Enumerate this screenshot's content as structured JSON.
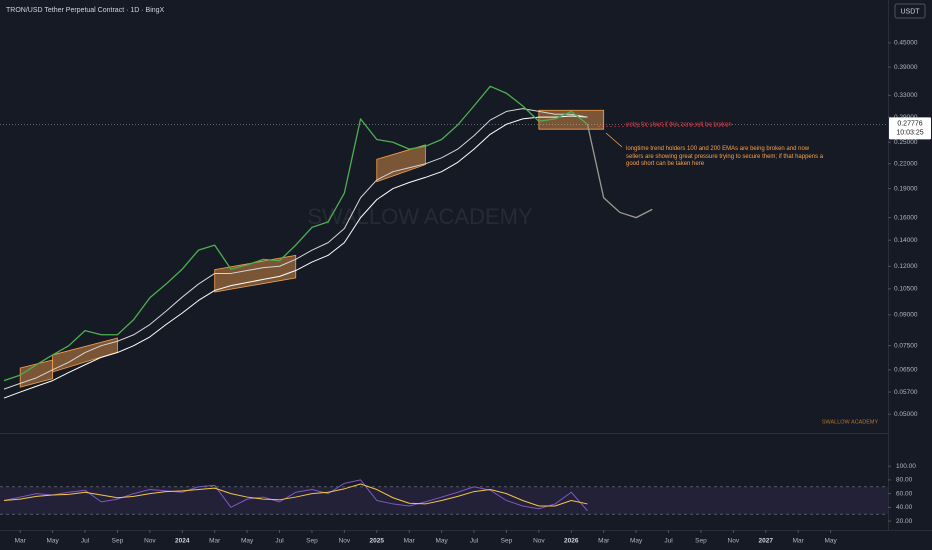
{
  "header": {
    "title": "TRON/USD Tether Perpetual Contract · 1D · BingX",
    "currency": "USDT"
  },
  "chart_data": [
    {
      "type": "line",
      "log_scale": true,
      "xlim": [
        "2023-02",
        "2027-07"
      ],
      "ylim": [
        0.045,
        0.58
      ],
      "yticks": [
        {
          "value": 0.45,
          "label": "0.45000"
        },
        {
          "value": 0.39,
          "label": "0.39000"
        },
        {
          "value": 0.33,
          "label": "0.33000"
        },
        {
          "value": 0.29,
          "label": "0.29000"
        },
        {
          "value": 0.25,
          "label": "0.25000"
        },
        {
          "value": 0.22,
          "label": "0.22000"
        },
        {
          "value": 0.19,
          "label": "0.19000"
        },
        {
          "value": 0.16,
          "label": "0.16000"
        },
        {
          "value": 0.14,
          "label": "0.14000"
        },
        {
          "value": 0.12,
          "label": "0.12000"
        },
        {
          "value": 0.105,
          "label": "0.10500"
        },
        {
          "value": 0.09,
          "label": "0.09000"
        },
        {
          "value": 0.075,
          "label": "0.07500"
        },
        {
          "value": 0.065,
          "label": "0.06500"
        },
        {
          "value": 0.057,
          "label": "0.05700"
        },
        {
          "value": 0.05,
          "label": "0.05000"
        }
      ],
      "xticks": [
        {
          "value": "2023-03",
          "label": "Mar"
        },
        {
          "value": "2023-05",
          "label": "May"
        },
        {
          "value": "2023-07",
          "label": "Jul"
        },
        {
          "value": "2023-09",
          "label": "Sep"
        },
        {
          "value": "2023-11",
          "label": "Nov"
        },
        {
          "value": "2024-01",
          "label": "2024"
        },
        {
          "value": "2024-03",
          "label": "Mar"
        },
        {
          "value": "2024-05",
          "label": "May"
        },
        {
          "value": "2024-07",
          "label": "Jul"
        },
        {
          "value": "2024-09",
          "label": "Sep"
        },
        {
          "value": "2024-11",
          "label": "Nov"
        },
        {
          "value": "2025-01",
          "label": "2025"
        },
        {
          "value": "2025-03",
          "label": "Mar"
        },
        {
          "value": "2025-05",
          "label": "May"
        },
        {
          "value": "2025-07",
          "label": "Jul"
        },
        {
          "value": "2025-09",
          "label": "Sep"
        },
        {
          "value": "2025-11",
          "label": "Nov"
        },
        {
          "value": "2026-01",
          "label": "2026"
        },
        {
          "value": "2026-03",
          "label": "Mar"
        },
        {
          "value": "2026-05",
          "label": "May"
        },
        {
          "value": "2026-07",
          "label": "Jul"
        },
        {
          "value": "2026-09",
          "label": "Sep"
        },
        {
          "value": "2026-11",
          "label": "Nov"
        },
        {
          "value": "2027-01",
          "label": "2027"
        },
        {
          "value": "2027-03",
          "label": "Mar"
        },
        {
          "value": "2027-05",
          "label": "May"
        }
      ],
      "series": [
        {
          "color": "#ffffff",
          "width": 1,
          "x": [
            "2023-02",
            "2023-03",
            "2023-04",
            "2023-05",
            "2023-06",
            "2023-07",
            "2023-08",
            "2023-09",
            "2023-10",
            "2023-11",
            "2023-12",
            "2024-01",
            "2024-02",
            "2024-03",
            "2024-04",
            "2024-05",
            "2024-06",
            "2024-07",
            "2024-08",
            "2024-09",
            "2024-10",
            "2024-11",
            "2024-12",
            "2025-01",
            "2025-02",
            "2025-03",
            "2025-04",
            "2025-05",
            "2025-06",
            "2025-07",
            "2025-08",
            "2025-09",
            "2025-10",
            "2025-11",
            "2025-12",
            "2026-01",
            "2026-02"
          ],
          "values": [
            0.055,
            0.057,
            0.059,
            0.061,
            0.064,
            0.067,
            0.07,
            0.072,
            0.075,
            0.079,
            0.085,
            0.091,
            0.098,
            0.104,
            0.107,
            0.109,
            0.111,
            0.113,
            0.117,
            0.123,
            0.128,
            0.138,
            0.16,
            0.178,
            0.19,
            0.197,
            0.203,
            0.21,
            0.222,
            0.24,
            0.262,
            0.278,
            0.287,
            0.29,
            0.29,
            0.292,
            0.29
          ]
        },
        {
          "color": "#d6d6d6",
          "width": 1,
          "x": [
            "2023-02",
            "2023-03",
            "2023-04",
            "2023-05",
            "2023-06",
            "2023-07",
            "2023-08",
            "2023-09",
            "2023-10",
            "2023-11",
            "2023-12",
            "2024-01",
            "2024-02",
            "2024-03",
            "2024-04",
            "2024-05",
            "2024-06",
            "2024-07",
            "2024-08",
            "2024-09",
            "2024-10",
            "2024-11",
            "2024-12",
            "2025-01",
            "2025-02",
            "2025-03",
            "2025-04",
            "2025-05",
            "2025-06",
            "2025-07",
            "2025-08",
            "2025-09",
            "2025-10",
            "2025-11",
            "2025-12",
            "2026-01",
            "2026-02"
          ],
          "values": [
            0.058,
            0.06,
            0.062,
            0.065,
            0.068,
            0.072,
            0.075,
            0.077,
            0.08,
            0.085,
            0.092,
            0.1,
            0.108,
            0.115,
            0.115,
            0.117,
            0.119,
            0.12,
            0.125,
            0.132,
            0.138,
            0.15,
            0.18,
            0.2,
            0.21,
            0.215,
            0.22,
            0.228,
            0.24,
            0.26,
            0.285,
            0.3,
            0.305,
            0.3,
            0.295,
            0.295,
            0.29
          ]
        },
        {
          "color": "#4caf50",
          "width": 1.3,
          "x": [
            "2023-02",
            "2023-03",
            "2023-04",
            "2023-05",
            "2023-06",
            "2023-07",
            "2023-08",
            "2023-09",
            "2023-10",
            "2023-11",
            "2023-12",
            "2024-01",
            "2024-02",
            "2024-03",
            "2024-04",
            "2024-05",
            "2024-06",
            "2024-07",
            "2024-08",
            "2024-09",
            "2024-10",
            "2024-11",
            "2024-12",
            "2025-01",
            "2025-02",
            "2025-03",
            "2025-04",
            "2025-05",
            "2025-06",
            "2025-07",
            "2025-08",
            "2025-09",
            "2025-10",
            "2025-11",
            "2025-12",
            "2026-01",
            "2026-02"
          ],
          "values": [
            0.061,
            0.063,
            0.067,
            0.071,
            0.075,
            0.082,
            0.08,
            0.08,
            0.0875,
            0.0996,
            0.108,
            0.118,
            0.132,
            0.136,
            0.118,
            0.121,
            0.125,
            0.124,
            0.136,
            0.151,
            0.156,
            0.185,
            0.287,
            0.254,
            0.25,
            0.24,
            0.244,
            0.254,
            0.277,
            0.31,
            0.348,
            0.334,
            0.31,
            0.283,
            0.287,
            0.3,
            0.278
          ]
        },
        {
          "color": "#9e9a8f",
          "width": 1.3,
          "x": [
            "2026-02",
            "2026-03",
            "2026-04",
            "2026-05",
            "2026-06"
          ],
          "values": [
            0.278,
            0.18,
            0.165,
            0.16,
            0.168
          ]
        }
      ],
      "zones": [
        {
          "x": [
            "2023-03",
            "2023-05"
          ],
          "low": [
            0.0587,
            0.0617
          ],
          "high": [
            0.0657,
            0.0689
          ]
        },
        {
          "x": [
            "2023-05",
            "2023-09"
          ],
          "low": [
            0.0642,
            0.0722
          ],
          "high": [
            0.071,
            0.0785
          ]
        },
        {
          "x": [
            "2024-03",
            "2024-08"
          ],
          "low": [
            0.103,
            0.112
          ],
          "high": [
            0.1176,
            0.128
          ]
        },
        {
          "x": [
            "2025-01",
            "2025-04"
          ],
          "low": [
            0.198,
            0.219
          ],
          "high": [
            0.226,
            0.246
          ]
        },
        {
          "x": [
            "2025-11",
            "2026-03"
          ],
          "low": [
            0.27,
            0.27
          ],
          "high": [
            0.302,
            0.302
          ]
        }
      ],
      "zone_color": "#f7a04b",
      "annotations": [
        {
          "text": "entry for short if this zone will be broken",
          "color": "#f23645"
        },
        {
          "text": "longtime trend holders 100 and 200 EMAs are being broken and now sellers are showing great pressure trying to secure them; if that happens a good short can be taken here",
          "color": "#f7a04b"
        }
      ],
      "watermark": "SWALLOW ACADEMY",
      "watermark_small": "SWALLOW ACADEMY",
      "last_price": 0.27776,
      "countdown": "10:03:25"
    },
    {
      "type": "line",
      "ylim": [
        7,
        144
      ],
      "yticks": [
        {
          "value": 100,
          "label": "100.00"
        },
        {
          "value": 80,
          "label": "80.00"
        },
        {
          "value": 60,
          "label": "60.00"
        },
        {
          "value": 40,
          "label": "40.00"
        },
        {
          "value": 20,
          "label": "20.00"
        }
      ],
      "band": [
        30,
        70
      ],
      "series": [
        {
          "color": "#7e57c2",
          "width": 1,
          "x": [
            "2023-02",
            "2023-03",
            "2023-04",
            "2023-05",
            "2023-06",
            "2023-07",
            "2023-08",
            "2023-09",
            "2023-10",
            "2023-11",
            "2023-12",
            "2024-01",
            "2024-02",
            "2024-03",
            "2024-04",
            "2024-05",
            "2024-06",
            "2024-07",
            "2024-08",
            "2024-09",
            "2024-10",
            "2024-11",
            "2024-12",
            "2025-01",
            "2025-02",
            "2025-03",
            "2025-04",
            "2025-05",
            "2025-06",
            "2025-07",
            "2025-08",
            "2025-09",
            "2025-10",
            "2025-11",
            "2025-12",
            "2026-01",
            "2026-02"
          ],
          "values": [
            50,
            55,
            60,
            58,
            62,
            65,
            48,
            52,
            60,
            66,
            64,
            62,
            70,
            72,
            40,
            52,
            55,
            48,
            62,
            66,
            60,
            75,
            80,
            50,
            45,
            42,
            48,
            55,
            62,
            70,
            65,
            50,
            42,
            38,
            45,
            62,
            35
          ]
        },
        {
          "color": "#f5c542",
          "width": 1,
          "x": [
            "2023-02",
            "2023-03",
            "2023-04",
            "2023-05",
            "2023-06",
            "2023-07",
            "2023-08",
            "2023-09",
            "2023-10",
            "2023-11",
            "2023-12",
            "2024-01",
            "2024-02",
            "2024-03",
            "2024-04",
            "2024-05",
            "2024-06",
            "2024-07",
            "2024-08",
            "2024-09",
            "2024-10",
            "2024-11",
            "2024-12",
            "2025-01",
            "2025-02",
            "2025-03",
            "2025-04",
            "2025-05",
            "2025-06",
            "2025-07",
            "2025-08",
            "2025-09",
            "2025-10",
            "2025-11",
            "2025-12",
            "2026-01",
            "2026-02"
          ],
          "values": [
            50,
            52,
            56,
            58,
            59,
            62,
            58,
            54,
            56,
            60,
            63,
            64,
            66,
            68,
            60,
            55,
            52,
            51,
            55,
            60,
            62,
            67,
            74,
            66,
            54,
            46,
            45,
            50,
            56,
            63,
            66,
            60,
            50,
            42,
            42,
            50,
            45
          ]
        }
      ]
    }
  ]
}
